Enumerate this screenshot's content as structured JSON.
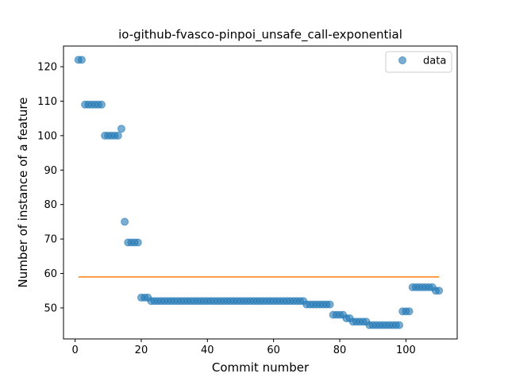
{
  "chart_data": {
    "type": "scatter",
    "title": "io-github-fvasco-pinpoi_unsafe_call-exponential",
    "xlabel": "Commit number",
    "ylabel": "Number of instance of a feature",
    "xlim": [
      -3.5,
      115.5
    ],
    "ylim": [
      41,
      126
    ],
    "xticks": [
      0,
      20,
      40,
      60,
      80,
      100
    ],
    "yticks": [
      50,
      60,
      70,
      80,
      90,
      100,
      110,
      120
    ],
    "grid": false,
    "legend_position": "top-right",
    "series": [
      {
        "name": "data",
        "kind": "scatter",
        "color": "#1f77b4",
        "points": [
          [
            1,
            122
          ],
          [
            2,
            122
          ],
          [
            3,
            109
          ],
          [
            4,
            109
          ],
          [
            5,
            109
          ],
          [
            6,
            109
          ],
          [
            7,
            109
          ],
          [
            8,
            109
          ],
          [
            9,
            100
          ],
          [
            10,
            100
          ],
          [
            11,
            100
          ],
          [
            12,
            100
          ],
          [
            13,
            100
          ],
          [
            14,
            102
          ],
          [
            15,
            75
          ],
          [
            16,
            69
          ],
          [
            17,
            69
          ],
          [
            18,
            69
          ],
          [
            19,
            69
          ],
          [
            20,
            53
          ],
          [
            21,
            53
          ],
          [
            22,
            53
          ],
          [
            23,
            52
          ],
          [
            24,
            52
          ],
          [
            25,
            52
          ],
          [
            26,
            52
          ],
          [
            27,
            52
          ],
          [
            28,
            52
          ],
          [
            29,
            52
          ],
          [
            30,
            52
          ],
          [
            31,
            52
          ],
          [
            32,
            52
          ],
          [
            33,
            52
          ],
          [
            34,
            52
          ],
          [
            35,
            52
          ],
          [
            36,
            52
          ],
          [
            37,
            52
          ],
          [
            38,
            52
          ],
          [
            39,
            52
          ],
          [
            40,
            52
          ],
          [
            41,
            52
          ],
          [
            42,
            52
          ],
          [
            43,
            52
          ],
          [
            44,
            52
          ],
          [
            45,
            52
          ],
          [
            46,
            52
          ],
          [
            47,
            52
          ],
          [
            48,
            52
          ],
          [
            49,
            52
          ],
          [
            50,
            52
          ],
          [
            51,
            52
          ],
          [
            52,
            52
          ],
          [
            53,
            52
          ],
          [
            54,
            52
          ],
          [
            55,
            52
          ],
          [
            56,
            52
          ],
          [
            57,
            52
          ],
          [
            58,
            52
          ],
          [
            59,
            52
          ],
          [
            60,
            52
          ],
          [
            61,
            52
          ],
          [
            62,
            52
          ],
          [
            63,
            52
          ],
          [
            64,
            52
          ],
          [
            65,
            52
          ],
          [
            66,
            52
          ],
          [
            67,
            52
          ],
          [
            68,
            52
          ],
          [
            69,
            52
          ],
          [
            70,
            51
          ],
          [
            71,
            51
          ],
          [
            72,
            51
          ],
          [
            73,
            51
          ],
          [
            74,
            51
          ],
          [
            75,
            51
          ],
          [
            76,
            51
          ],
          [
            77,
            51
          ],
          [
            78,
            48
          ],
          [
            79,
            48
          ],
          [
            80,
            48
          ],
          [
            81,
            48
          ],
          [
            82,
            47
          ],
          [
            83,
            47
          ],
          [
            84,
            46
          ],
          [
            85,
            46
          ],
          [
            86,
            46
          ],
          [
            87,
            46
          ],
          [
            88,
            46
          ],
          [
            89,
            45
          ],
          [
            90,
            45
          ],
          [
            91,
            45
          ],
          [
            92,
            45
          ],
          [
            93,
            45
          ],
          [
            94,
            45
          ],
          [
            95,
            45
          ],
          [
            96,
            45
          ],
          [
            97,
            45
          ],
          [
            98,
            45
          ],
          [
            99,
            49
          ],
          [
            100,
            49
          ],
          [
            101,
            49
          ],
          [
            102,
            56
          ],
          [
            103,
            56
          ],
          [
            104,
            56
          ],
          [
            105,
            56
          ],
          [
            106,
            56
          ],
          [
            107,
            56
          ],
          [
            108,
            56
          ],
          [
            109,
            55
          ],
          [
            110,
            55
          ]
        ]
      },
      {
        "kind": "line",
        "color": "#ff7f0e",
        "x": [
          1,
          110
        ],
        "y": [
          59,
          59
        ]
      }
    ]
  }
}
